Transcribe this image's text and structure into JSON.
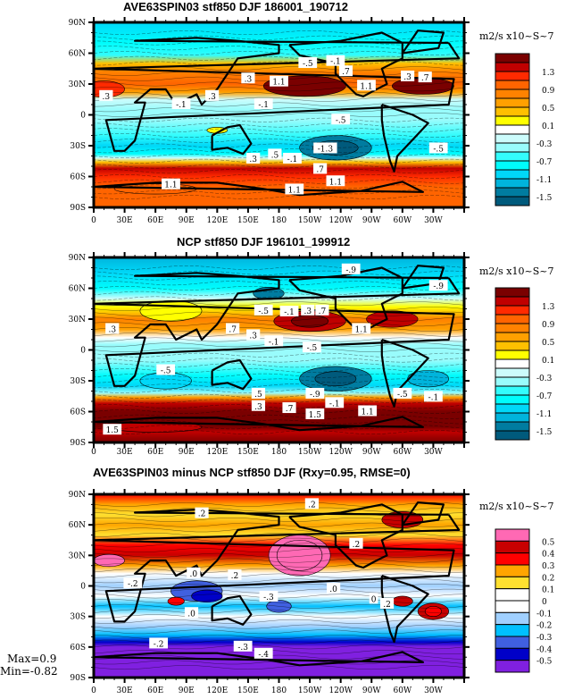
{
  "chart_data": [
    {
      "type": "heatmap",
      "title": "AVE63SPIN03 stf850 DJF 186001_190712",
      "units": "m2/s x10~S~7",
      "xticks": [
        "0",
        "30E",
        "60E",
        "90E",
        "120E",
        "150E",
        "180",
        "150W",
        "120W",
        "90W",
        "60W",
        "30W"
      ],
      "yticks": [
        "90N",
        "60N",
        "30N",
        "0",
        "30S",
        "60S",
        "90S"
      ],
      "xlim": [
        0,
        360
      ],
      "ylim": [
        -90,
        90
      ],
      "colorbar": {
        "labels": [
          "1.3",
          "0.9",
          "0.5",
          "0.1",
          "-0.3",
          "-0.7",
          "-1.1",
          "-1.5"
        ],
        "colors": [
          "#7a0000",
          "#c00000",
          "#ff2a00",
          "#ff6400",
          "#ff8200",
          "#ffa000",
          "#ffc000",
          "#ffff00",
          "#ffffff",
          "#ccfcfc",
          "#99fcfc",
          "#33fcfc",
          "#00fcfc",
          "#00d8f8",
          "#00b4dc",
          "#007ca0",
          "#005a7c"
        ]
      },
      "contour_labels": [
        {
          "text": ".3",
          "lon": 12,
          "lat": 18
        },
        {
          "text": "-.1",
          "lon": 85,
          "lat": 10
        },
        {
          "text": ".3",
          "lon": 115,
          "lat": 18
        },
        {
          "text": ".3",
          "lon": 150,
          "lat": 35
        },
        {
          "text": "1.1",
          "lon": 180,
          "lat": 32
        },
        {
          "text": "-.1",
          "lon": 165,
          "lat": 10
        },
        {
          "text": "-.5",
          "lon": 208,
          "lat": 50
        },
        {
          "text": "-.1",
          "lon": 235,
          "lat": 52
        },
        {
          "text": ".7",
          "lon": 245,
          "lat": 42
        },
        {
          "text": "1.1",
          "lon": 265,
          "lat": 28
        },
        {
          "text": ".3",
          "lon": 305,
          "lat": 37
        },
        {
          "text": ".7",
          "lon": 322,
          "lat": 36
        },
        {
          "text": "-.5",
          "lon": 240,
          "lat": -5
        },
        {
          "text": "-1.3",
          "lon": 225,
          "lat": -33
        },
        {
          "text": "-.5",
          "lon": 335,
          "lat": -33
        },
        {
          "text": ".3",
          "lon": 155,
          "lat": -43
        },
        {
          "text": ".5",
          "lon": 176,
          "lat": -39
        },
        {
          "text": "-.1",
          "lon": 193,
          "lat": -43
        },
        {
          "text": ".7",
          "lon": 220,
          "lat": -53
        },
        {
          "text": "1.1",
          "lon": 235,
          "lat": -65
        },
        {
          "text": "1.1",
          "lon": 75,
          "lat": -68
        },
        {
          "text": "1.1",
          "lon": 195,
          "lat": -73
        }
      ]
    },
    {
      "type": "heatmap",
      "title": "NCP stf850 DJF 196101_199912",
      "units": "m2/s x10~S~7",
      "xticks": [
        "0",
        "30E",
        "60E",
        "90E",
        "120E",
        "150E",
        "180",
        "150W",
        "120W",
        "90W",
        "60W",
        "30W"
      ],
      "yticks": [
        "90N",
        "60N",
        "30N",
        "0",
        "30S",
        "60S",
        "90S"
      ],
      "xlim": [
        0,
        360
      ],
      "ylim": [
        -90,
        90
      ],
      "colorbar": {
        "labels": [
          "1.3",
          "0.9",
          "0.5",
          "0.1",
          "-0.3",
          "-0.7",
          "-1.1",
          "-1.5"
        ],
        "colors": [
          "#7a0000",
          "#c00000",
          "#ff2a00",
          "#ff6400",
          "#ff8200",
          "#ffa000",
          "#ffc000",
          "#ffff00",
          "#ffffff",
          "#ccfcfc",
          "#99fcfc",
          "#33fcfc",
          "#00fcfc",
          "#00d8f8",
          "#00b4dc",
          "#007ca0",
          "#005a7c"
        ]
      },
      "contour_labels": [
        {
          "text": "-.9",
          "lon": 250,
          "lat": 78
        },
        {
          "text": "-.9",
          "lon": 335,
          "lat": 62
        },
        {
          "text": ".3",
          "lon": 18,
          "lat": 20
        },
        {
          "text": ".7",
          "lon": 135,
          "lat": 20
        },
        {
          "text": ".3",
          "lon": 155,
          "lat": 14
        },
        {
          "text": "-.1",
          "lon": 175,
          "lat": 8
        },
        {
          "text": "-.5",
          "lon": 165,
          "lat": 38
        },
        {
          "text": "-.1",
          "lon": 190,
          "lat": 37
        },
        {
          "text": ".3",
          "lon": 208,
          "lat": 38
        },
        {
          "text": ".7",
          "lon": 222,
          "lat": 38
        },
        {
          "text": "1.1",
          "lon": 260,
          "lat": 20
        },
        {
          "text": "-.5",
          "lon": 70,
          "lat": -20
        },
        {
          "text": "-.5",
          "lon": 212,
          "lat": 2
        },
        {
          "text": ".5",
          "lon": 160,
          "lat": -43
        },
        {
          "text": "-.9",
          "lon": 215,
          "lat": -43
        },
        {
          "text": "-.5",
          "lon": 300,
          "lat": -43
        },
        {
          "text": "-.1",
          "lon": 330,
          "lat": -46
        },
        {
          "text": ".3",
          "lon": 160,
          "lat": -55
        },
        {
          "text": ".7",
          "lon": 190,
          "lat": -57
        },
        {
          "text": "-.1",
          "lon": 234,
          "lat": -52
        },
        {
          "text": "1.1",
          "lon": 266,
          "lat": -60
        },
        {
          "text": "1.5",
          "lon": 215,
          "lat": -63
        },
        {
          "text": "1.5",
          "lon": 18,
          "lat": -78
        }
      ]
    },
    {
      "type": "heatmap",
      "title": "AVE63SPIN03 minus NCP stf850 DJF (Rxy=0.95, RMSE=0)",
      "units": "m2/s x10~S~7",
      "xticks": [
        "0",
        "30E",
        "60E",
        "90E",
        "120E",
        "150E",
        "180",
        "150W",
        "120W",
        "90W",
        "60W",
        "30W"
      ],
      "yticks": [
        "90N",
        "60N",
        "30N",
        "0",
        "30S",
        "60S",
        "90S"
      ],
      "xlim": [
        0,
        360
      ],
      "ylim": [
        -90,
        90
      ],
      "max": "Max=0.9",
      "min": "Min=-0.82",
      "colorbar": {
        "labels": [
          "0.5",
          "0.4",
          "0.3",
          "0.2",
          "0.1",
          "0",
          "-0.1",
          "-0.2",
          "-0.3",
          "-0.4",
          "-0.5"
        ],
        "colors": [
          "#ff69b4",
          "#c80000",
          "#ff0000",
          "#ffa500",
          "#ffe030",
          "#ffffff",
          "#ffffff",
          "#a0d0ff",
          "#00c0ff",
          "#4060e0",
          "#0000c8",
          "#8020e0"
        ]
      },
      "contour_labels": [
        {
          "text": ".2",
          "lon": 105,
          "lat": 71
        },
        {
          "text": ".2",
          "lon": 212,
          "lat": 80
        },
        {
          "text": ".2",
          "lon": 255,
          "lat": 41
        },
        {
          "text": ".0",
          "lon": 97,
          "lat": 12
        },
        {
          "text": ".2",
          "lon": 137,
          "lat": 10
        },
        {
          "text": "-.2",
          "lon": 38,
          "lat": 2
        },
        {
          "text": ".0",
          "lon": 233,
          "lat": -3
        },
        {
          "text": "-.3",
          "lon": 170,
          "lat": -11
        },
        {
          "text": "0",
          "lon": 272,
          "lat": -13
        },
        {
          "text": ".2",
          "lon": 285,
          "lat": -18
        },
        {
          "text": ".0",
          "lon": 95,
          "lat": -27
        },
        {
          "text": "-.2",
          "lon": 63,
          "lat": -57
        },
        {
          "text": "-.3",
          "lon": 145,
          "lat": -60
        },
        {
          "text": "-.4",
          "lon": 165,
          "lat": -67
        }
      ]
    }
  ]
}
